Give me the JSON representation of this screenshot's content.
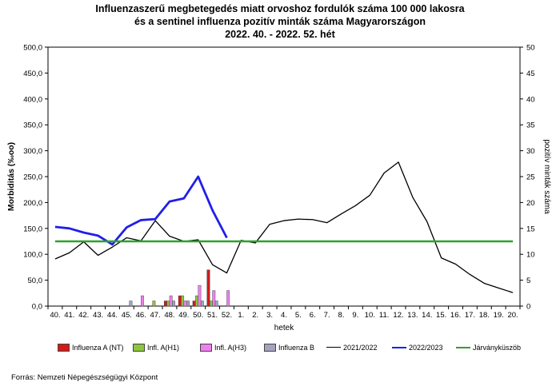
{
  "title": {
    "line1": "Influenzaszerű megbetegedés miatt orvoshoz fordulók száma 100 000 lakosra",
    "line2": "és a sentinel influenza pozitív minták száma Magyarországon",
    "line3": "2022. 40. - 2022. 52. hét"
  },
  "source": "Forrás: Nemzeti Népegészségügyi Központ",
  "chart_data": {
    "type": "line",
    "xlabel": "hetek",
    "ylabel_left": "Morbiditás (‰oo)",
    "ylabel_right": "pozitív minták száma",
    "categories": [
      "40.",
      "41.",
      "42.",
      "43.",
      "44.",
      "45.",
      "46.",
      "47.",
      "48.",
      "49.",
      "50.",
      "51.",
      "52.",
      "1.",
      "2.",
      "3.",
      "4.",
      "5.",
      "6.",
      "7.",
      "8.",
      "9.",
      "10.",
      "11.",
      "12.",
      "13.",
      "14.",
      "15.",
      "16.",
      "17.",
      "18.",
      "19.",
      "20."
    ],
    "y_left": {
      "min": 0,
      "max": 500,
      "step": 50,
      "ticks": [
        "0,0",
        "50,0",
        "100,0",
        "150,0",
        "200,0",
        "250,0",
        "300,0",
        "350,0",
        "400,0",
        "450,0",
        "500,0"
      ]
    },
    "y_right": {
      "min": 0,
      "max": 50,
      "step": 5,
      "ticks": [
        "0",
        "5",
        "10",
        "15",
        "20",
        "25",
        "30",
        "35",
        "40",
        "45",
        "50"
      ]
    },
    "lines": [
      {
        "name": "2021/2022",
        "color": "#000000",
        "axis": "left",
        "values": [
          91,
          103,
          124,
          98,
          114,
          132,
          126,
          165,
          135,
          125,
          128,
          80,
          64,
          127,
          122,
          158,
          165,
          168,
          167,
          161,
          178,
          194,
          214,
          257,
          278,
          210,
          163,
          93,
          81,
          61,
          44,
          35,
          26
        ]
      },
      {
        "name": "2022/2023",
        "color": "#1f1fe8",
        "axis": "left",
        "values": [
          153,
          150,
          142,
          136,
          119,
          152,
          166,
          168,
          202,
          208,
          250,
          185,
          132
        ]
      },
      {
        "name": "Járványküszöb",
        "color": "#2ea02e",
        "axis": "left",
        "values": [
          125,
          125,
          125,
          125,
          125,
          125,
          125,
          125,
          125,
          125,
          125,
          125,
          125,
          125,
          125,
          125,
          125,
          125,
          125,
          125,
          125,
          125,
          125,
          125,
          125,
          125,
          125,
          125,
          125,
          125,
          125,
          125,
          125
        ]
      }
    ],
    "bars": [
      {
        "name": "Influenza A (NT)",
        "color": "#d11a1a",
        "axis": "right",
        "values": [
          0,
          0,
          0,
          0,
          0,
          0,
          0,
          0,
          1,
          2,
          1,
          7,
          0
        ]
      },
      {
        "name": "Infl. A(H1)",
        "color": "#8cc63e",
        "axis": "right",
        "values": [
          0,
          0,
          0,
          0,
          0,
          0,
          0,
          1,
          1,
          2,
          2,
          1,
          0
        ]
      },
      {
        "name": "Infl. A(H3)",
        "color": "#f07ff0",
        "axis": "right",
        "values": [
          0,
          0,
          0,
          0,
          0,
          0,
          2,
          0,
          2,
          1,
          4,
          3,
          3
        ]
      },
      {
        "name": "Influenza B",
        "color": "#a3a3c0",
        "axis": "right",
        "values": [
          0,
          0,
          0,
          0,
          0,
          1,
          0,
          0,
          1,
          1,
          1,
          1,
          0
        ]
      }
    ],
    "legend_position": "bottom"
  },
  "legend": [
    {
      "label": "Influenza A (NT)",
      "kind": "bar",
      "color": "#d11a1a"
    },
    {
      "label": "Infl. A(H1)",
      "kind": "bar",
      "color": "#8cc63e"
    },
    {
      "label": "Infl. A(H3)",
      "kind": "bar",
      "color": "#f07ff0"
    },
    {
      "label": "Influenza B",
      "kind": "bar",
      "color": "#a3a3c0"
    },
    {
      "label": "2021/2022",
      "kind": "line",
      "color": "#000000"
    },
    {
      "label": "2022/2023",
      "kind": "line",
      "color": "#1f1fe8"
    },
    {
      "label": "Járványküszöb",
      "kind": "line",
      "color": "#2ea02e"
    }
  ]
}
